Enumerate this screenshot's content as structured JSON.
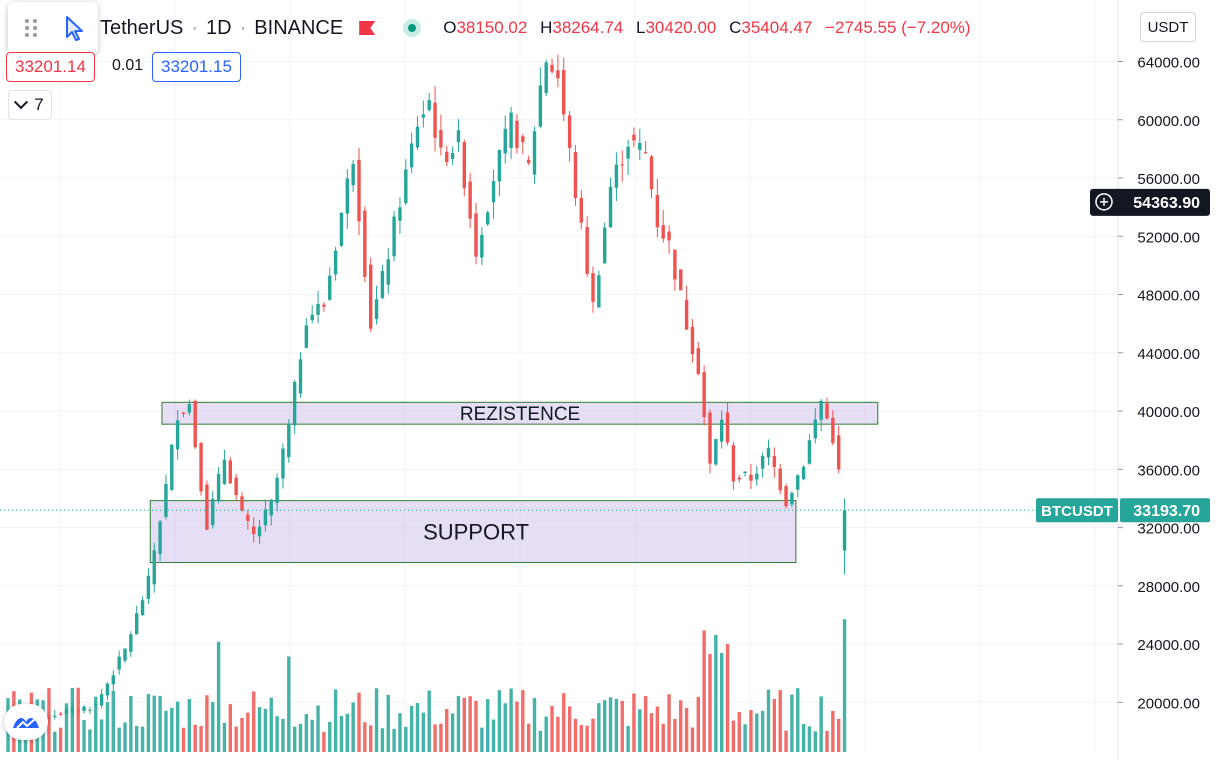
{
  "header": {
    "symbol": "TetherUS",
    "interval": "1D",
    "exchange": "BINANCE",
    "ohlc": {
      "o_label": "O",
      "o": "38150.02",
      "h_label": "H",
      "h": "38264.74",
      "l_label": "L",
      "l": "30420.00",
      "c_label": "C",
      "c": "35404.47",
      "change": "−2745.55 (−7.20%)"
    }
  },
  "trade": {
    "bid": "33201.14",
    "spread": "0.01",
    "ask": "33201.15"
  },
  "indicators_toggle": {
    "count": "7"
  },
  "currency_button": "USDT",
  "colors": {
    "up": "#26a69a",
    "down": "#ef5350",
    "zone_fill": "#dcd3f0",
    "zone_border": "#2e7d32",
    "price_label": "#26a69a"
  },
  "chart_data": {
    "type": "candlestick",
    "y_axis": {
      "ticks": [
        "64000.00",
        "60000.00",
        "56000.00",
        "52000.00",
        "48000.00",
        "44000.00",
        "40000.00",
        "36000.00",
        "32000.00",
        "28000.00",
        "24000.00",
        "20000.00"
      ],
      "range": [
        17000,
        65500
      ]
    },
    "crosshair_price": "54363.90",
    "last_price": {
      "symbol": "BTCUSDT",
      "value": "33193.70",
      "y": 33193.7
    },
    "zones": [
      {
        "label": "REZISTENCE",
        "top": 40600,
        "bottom": 39100,
        "start_index": 27,
        "end_index": 148
      },
      {
        "label": "SUPPORT",
        "top": 33850,
        "bottom": 29600,
        "start_index": 25,
        "end_index": 134
      }
    ],
    "anchors": [
      [
        0,
        18500
      ],
      [
        8,
        19200
      ],
      [
        15,
        19800
      ],
      [
        20,
        23600
      ],
      [
        24,
        28300
      ],
      [
        27,
        34800
      ],
      [
        29,
        39900
      ],
      [
        31,
        40500
      ],
      [
        34,
        32200
      ],
      [
        37,
        36800
      ],
      [
        40,
        32800
      ],
      [
        42,
        31400
      ],
      [
        45,
        33600
      ],
      [
        48,
        38900
      ],
      [
        51,
        46500
      ],
      [
        54,
        47300
      ],
      [
        57,
        53600
      ],
      [
        59,
        57600
      ],
      [
        62,
        46000
      ],
      [
        64,
        49000
      ],
      [
        67,
        54500
      ],
      [
        70,
        59800
      ],
      [
        72,
        61300
      ],
      [
        74,
        57400
      ],
      [
        77,
        58500
      ],
      [
        80,
        51000
      ],
      [
        83,
        56100
      ],
      [
        86,
        59800
      ],
      [
        89,
        56700
      ],
      [
        91,
        62300
      ],
      [
        92,
        64200
      ],
      [
        94,
        63000
      ],
      [
        97,
        55000
      ],
      [
        100,
        47200
      ],
      [
        103,
        55400
      ],
      [
        106,
        58600
      ],
      [
        109,
        57600
      ],
      [
        111,
        53000
      ],
      [
        113,
        51400
      ],
      [
        116,
        46000
      ],
      [
        118,
        43000
      ],
      [
        120,
        36200
      ],
      [
        122,
        39600
      ],
      [
        124,
        35500
      ],
      [
        127,
        35400
      ],
      [
        130,
        37200
      ],
      [
        133,
        33800
      ],
      [
        136,
        36500
      ],
      [
        139,
        40700
      ],
      [
        141,
        38200
      ],
      [
        143,
        33193.7
      ]
    ]
  }
}
